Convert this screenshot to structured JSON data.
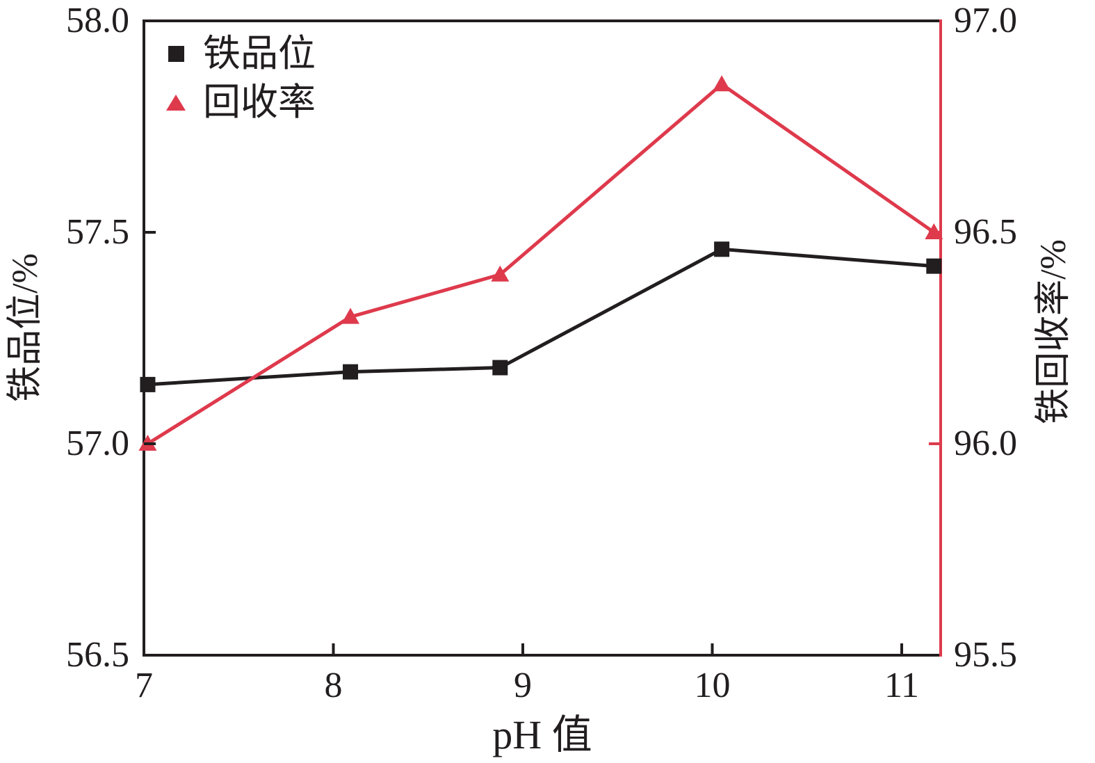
{
  "chart_data": {
    "type": "line",
    "title": "",
    "x": [
      7.02,
      8.09,
      8.88,
      10.05,
      11.17
    ],
    "series": [
      {
        "name": "铁品位",
        "axis": "left",
        "marker": "square",
        "color": "#221e1f",
        "values": [
          57.14,
          57.17,
          57.18,
          57.46,
          57.42
        ]
      },
      {
        "name": "回收率",
        "axis": "right",
        "marker": "triangle",
        "color": "#de3a4c",
        "values": [
          96.0,
          96.3,
          96.4,
          96.85,
          96.5
        ]
      }
    ],
    "x_axis": {
      "label": "pH 值",
      "ticks": [
        "7",
        "8",
        "9",
        "10",
        "11"
      ],
      "tick_values": [
        7,
        8,
        9,
        10,
        11
      ],
      "range": [
        7,
        11.2
      ]
    },
    "y_left": {
      "label": "铁品位/%",
      "ticks": [
        "58.0",
        "57.5",
        "57.0",
        "56.5"
      ],
      "tick_values": [
        58.0,
        57.5,
        57.0,
        56.5
      ],
      "range": [
        56.5,
        58.0
      ],
      "color": "#221e1f"
    },
    "y_right": {
      "label": "铁回收率/%",
      "ticks": [
        "97.0",
        "96.5",
        "96.0",
        "95.5"
      ],
      "tick_values": [
        97.0,
        96.5,
        96.0,
        95.5
      ],
      "range": [
        95.5,
        97.0
      ],
      "color": "#de3a4c"
    },
    "legend": {
      "position": "top-left",
      "entries": [
        "铁品位",
        "回收率"
      ]
    },
    "grid": false
  },
  "colors": {
    "black": "#221e1f",
    "red": "#de3a4c",
    "background": "#ffffff"
  }
}
